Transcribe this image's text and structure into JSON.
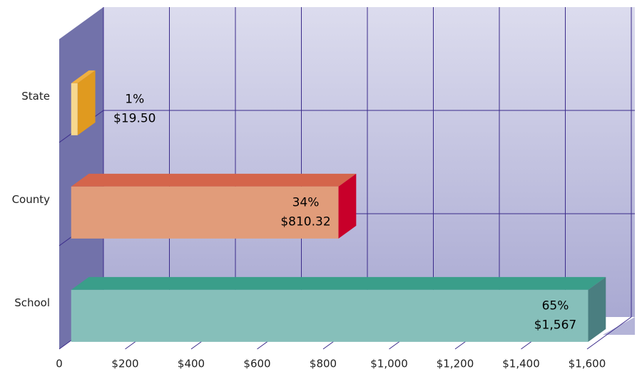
{
  "chart_data": {
    "type": "bar3d_horizontal",
    "categories": [
      "State",
      "County",
      "School"
    ],
    "values": [
      19.5,
      810.32,
      1567
    ],
    "value_labels": [
      "$19.50",
      "$810.32",
      "$1,567"
    ],
    "share_labels": [
      "1%",
      "34%",
      "65%"
    ],
    "colors": [
      "#f7d88e",
      "#e19c7a",
      "#86bfba"
    ],
    "top_colors": [
      "#f0b040",
      "#d4654b",
      "#3a9e8a"
    ],
    "side_colors": [
      "#e09a1f",
      "#c8002a",
      "#4a7e80"
    ],
    "xlim": [
      0,
      1600
    ],
    "xticks": [
      0,
      {
        "value": 200,
        "label": "$200"
      },
      {
        "value": 400,
        "label": "$400"
      },
      {
        "value": 600,
        "label": "$600"
      },
      {
        "value": 800,
        "label": "$800"
      },
      {
        "value": 1000,
        "label": "$1,000"
      },
      {
        "value": 1200,
        "label": "$1,200"
      },
      {
        "value": 1400,
        "label": "$1,400"
      },
      {
        "value": 1600,
        "label": "$1,600"
      }
    ],
    "grid": true
  }
}
